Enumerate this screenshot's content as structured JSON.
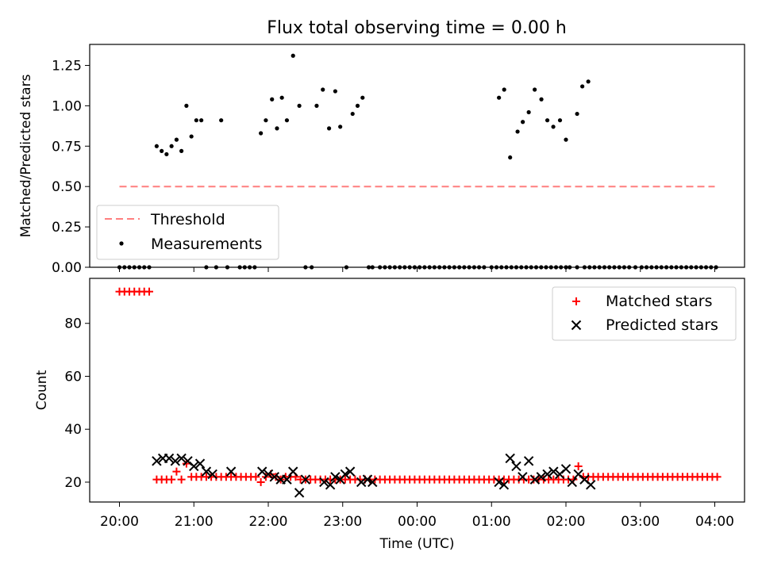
{
  "title": "Flux total observing time = 0.00 h",
  "chart_data": [
    {
      "type": "scatter",
      "ylabel": "Matched/Predicted stars",
      "xlim": [
        -0.4,
        8.4
      ],
      "ylim": [
        0,
        1.38
      ],
      "yticks": [
        0.0,
        0.25,
        0.5,
        0.75,
        1.0,
        1.25
      ],
      "ytick_labels": [
        "0.00",
        "0.25",
        "0.50",
        "0.75",
        "1.00",
        "1.25"
      ],
      "threshold": {
        "name": "Threshold",
        "value": 0.5,
        "x_range": [
          0,
          8
        ],
        "color": "#ff7f7f"
      },
      "legend_position": "lower-left",
      "series": [
        {
          "name": "Measurements",
          "color": "#000000",
          "x": [
            0,
            0.067,
            0.133,
            0.2,
            0.267,
            0.333,
            0.4,
            0.5,
            0.567,
            0.633,
            0.7,
            0.767,
            0.833,
            0.9,
            0.967,
            1.033,
            1.1,
            1.167,
            1.3,
            1.367,
            1.45,
            1.617,
            1.683,
            1.75,
            1.817,
            1.9,
            1.967,
            2.05,
            2.117,
            2.183,
            2.25,
            2.333,
            2.417,
            2.5,
            2.583,
            2.65,
            2.733,
            2.817,
            2.9,
            2.967,
            3.05,
            3.133,
            3.2,
            3.267,
            3.35,
            3.4,
            3.5,
            3.567,
            3.633,
            3.7,
            3.767,
            3.833,
            3.9,
            3.967,
            4.033,
            4.1,
            4.167,
            4.233,
            4.3,
            4.367,
            4.433,
            4.5,
            4.567,
            4.633,
            4.7,
            4.767,
            4.833,
            4.9,
            5.0,
            5.067,
            5.133,
            5.2,
            5.267,
            5.333,
            5.4,
            5.467,
            5.533,
            5.6,
            5.667,
            5.733,
            5.8,
            5.867,
            5.933,
            6.0,
            6.05,
            6.15,
            6.25,
            6.317,
            6.383,
            6.45,
            6.517,
            6.583,
            6.65,
            6.717,
            6.783,
            6.85,
            6.933,
            7.017,
            7.083,
            7.15,
            7.217,
            7.283,
            7.35,
            7.417,
            7.483,
            7.55,
            7.617,
            7.683,
            7.75,
            7.817,
            7.883,
            7.95,
            8.017
          ],
          "y": [
            0,
            0,
            0,
            0,
            0,
            0,
            0,
            0.75,
            0.72,
            0.7,
            0.75,
            0.79,
            0.72,
            1.0,
            0.81,
            0.91,
            0.91,
            0,
            0,
            0.91,
            0,
            0,
            0,
            0,
            0,
            0.83,
            0.91,
            1.04,
            0.86,
            1.05,
            0.91,
            1.31,
            1.0,
            0,
            0,
            1.0,
            1.1,
            0.86,
            1.09,
            0.87,
            0,
            0.95,
            1.0,
            1.05,
            0,
            0,
            0,
            0,
            0,
            0,
            0,
            0,
            0,
            0,
            0,
            0,
            0,
            0,
            0,
            0,
            0,
            0,
            0,
            0,
            0,
            0,
            0,
            0,
            0,
            0,
            0,
            0,
            0,
            0,
            0,
            0,
            0,
            0,
            0,
            0,
            0,
            0,
            0,
            0,
            0,
            0,
            0,
            0,
            0,
            0,
            0,
            0,
            0,
            0,
            0,
            0,
            0,
            0,
            0,
            0,
            0,
            0,
            0,
            0,
            0,
            0,
            0,
            0,
            0,
            0,
            0,
            0,
            0
          ],
          "x2": [
            5.1,
            5.17,
            5.25,
            5.35,
            5.42,
            5.5,
            5.58,
            5.67,
            5.75,
            5.83,
            5.92,
            6.0,
            6.15,
            6.22,
            6.3
          ],
          "y2": [
            1.05,
            1.1,
            0.68,
            0.84,
            0.9,
            0.96,
            1.1,
            1.04,
            0.91,
            0.87,
            0.91,
            0.79,
            0.95,
            1.12,
            1.15
          ]
        }
      ]
    },
    {
      "type": "scatter",
      "ylabel": "Count",
      "xlabel": "Time (UTC)",
      "xlim": [
        -0.4,
        8.4
      ],
      "ylim": [
        12.5,
        97
      ],
      "yticks": [
        20,
        40,
        60,
        80
      ],
      "ytick_labels": [
        "20",
        "40",
        "60",
        "80"
      ],
      "xticks": [
        0,
        1,
        2,
        3,
        4,
        5,
        6,
        7,
        8
      ],
      "xtick_labels": [
        "20:00",
        "21:00",
        "22:00",
        "23:00",
        "00:00",
        "01:00",
        "02:00",
        "03:00",
        "04:00"
      ],
      "legend_position": "top-right",
      "series": [
        {
          "name": "Matched stars",
          "marker": "+",
          "color": "#ff0000",
          "x": [
            0,
            0.067,
            0.133,
            0.2,
            0.267,
            0.333,
            0.4,
            0.5,
            0.567,
            0.633,
            0.7,
            0.767,
            0.833,
            0.9,
            0.967,
            1.033,
            1.1,
            1.167,
            1.233,
            1.3,
            1.367,
            1.433,
            1.5,
            1.567,
            1.633,
            1.7,
            1.767,
            1.833,
            1.9,
            1.967,
            2.033,
            2.1,
            2.167,
            2.233,
            2.3,
            2.367,
            2.433,
            2.5,
            2.567,
            2.633,
            2.7,
            2.767,
            2.833,
            2.9,
            2.967,
            3.033,
            3.1,
            3.167,
            3.233,
            3.3,
            3.367,
            3.433,
            3.5,
            3.567,
            3.633,
            3.7,
            3.767,
            3.833,
            3.9,
            3.967,
            4.033,
            4.1,
            4.167,
            4.233,
            4.3,
            4.367,
            4.433,
            4.5,
            4.567,
            4.633,
            4.7,
            4.767,
            4.833,
            4.9,
            4.967,
            5.033,
            5.1,
            5.167,
            5.233,
            5.3,
            5.367,
            5.433,
            5.5,
            5.567,
            5.633,
            5.7,
            5.767,
            5.833,
            5.9,
            5.967,
            6.033,
            6.1,
            6.167,
            6.233,
            6.3,
            6.367,
            6.433,
            6.5,
            6.567,
            6.633,
            6.7,
            6.767,
            6.833,
            6.9,
            6.967,
            7.033,
            7.1,
            7.167,
            7.233,
            7.3,
            7.367,
            7.433,
            7.5,
            7.567,
            7.633,
            7.7,
            7.767,
            7.833,
            7.9,
            7.967,
            8.033
          ],
          "y": [
            92,
            92,
            92,
            92,
            92,
            92,
            92,
            21,
            21,
            21,
            21,
            24,
            21,
            27,
            22,
            22,
            22,
            22,
            22,
            22,
            22,
            22,
            22,
            22,
            22,
            22,
            22,
            22,
            20,
            22,
            23,
            22,
            21,
            22,
            22,
            22,
            21,
            21,
            21,
            21,
            21,
            21,
            21,
            21,
            21,
            21,
            21,
            21,
            21,
            21,
            21,
            21,
            21,
            21,
            21,
            21,
            21,
            21,
            21,
            21,
            21,
            21,
            21,
            21,
            21,
            21,
            21,
            21,
            21,
            21,
            21,
            21,
            21,
            21,
            21,
            21,
            21,
            21,
            21,
            21,
            21,
            21,
            21,
            21,
            21,
            21,
            21,
            21,
            21,
            21,
            21,
            21,
            26,
            22,
            22,
            22,
            22,
            22,
            22,
            22,
            22,
            22,
            22,
            22,
            22,
            22,
            22,
            22,
            22,
            22,
            22,
            22,
            22,
            22,
            22,
            22,
            22,
            22,
            22,
            22,
            22
          ]
        },
        {
          "name": "Predicted stars",
          "marker": "x",
          "color": "#000000",
          "x": [
            0.5,
            0.583,
            0.667,
            0.75,
            0.833,
            0.917,
            1.0,
            1.083,
            1.167,
            1.25,
            1.5,
            1.917,
            2.0,
            2.083,
            2.167,
            2.25,
            2.333,
            2.417,
            2.5,
            2.75,
            2.833,
            2.9,
            2.967,
            3.033,
            3.1,
            3.25,
            3.333,
            3.4,
            5.1,
            5.167,
            5.25,
            5.333,
            5.417,
            5.5,
            5.583,
            5.667,
            5.75,
            5.833,
            5.917,
            6.0,
            6.083,
            6.167,
            6.25,
            6.333
          ],
          "y": [
            28,
            29,
            29,
            28,
            29,
            28,
            26,
            27,
            24,
            23,
            24,
            24,
            23,
            22,
            21,
            21,
            24,
            16,
            21,
            20,
            19,
            22,
            21,
            23,
            24,
            20,
            21,
            20,
            20,
            19,
            29,
            26,
            22,
            28,
            21,
            22,
            23,
            24,
            23,
            25,
            20,
            23,
            21,
            19
          ]
        }
      ]
    }
  ]
}
